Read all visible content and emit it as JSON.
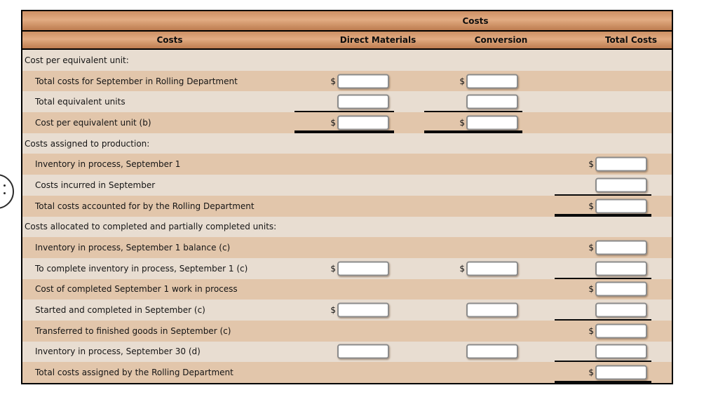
{
  "table": {
    "top_header": "Costs",
    "columns": [
      "Costs",
      "Direct Materials",
      "Conversion",
      "Total Costs"
    ],
    "currency_symbol": "$",
    "colors": {
      "header_gradient_top": "#cd9064",
      "header_gradient_mid": "#e2ac83",
      "header_gradient_bottom": "#bd7c50",
      "row_light": "#e8ddd1",
      "row_dark": "#e2c6ab",
      "border": "#000000"
    },
    "rows": [
      {
        "label": "Cost per equivalent unit:",
        "section": true,
        "cells": {}
      },
      {
        "label": "Total costs for September in Rolling Department",
        "cells": {
          "dm": {
            "dollar": true,
            "input": true,
            "value": ""
          },
          "conv": {
            "dollar": true,
            "input": true,
            "value": ""
          }
        }
      },
      {
        "label": "Total equivalent units",
        "cells": {
          "dm": {
            "input": true,
            "value": "",
            "underline": "thin"
          },
          "conv": {
            "input": true,
            "value": "",
            "underline": "thin"
          }
        }
      },
      {
        "label": "Cost per equivalent unit (b)",
        "cells": {
          "dm": {
            "dollar": true,
            "input": true,
            "value": "",
            "underline": "thick"
          },
          "conv": {
            "dollar": true,
            "input": true,
            "value": "",
            "underline": "thick"
          }
        }
      },
      {
        "label": "Costs assigned to production:",
        "section": true,
        "cells": {}
      },
      {
        "label": "Inventory in process, September 1",
        "cells": {
          "total": {
            "dollar": true,
            "input": true,
            "value": ""
          }
        }
      },
      {
        "label": "Costs incurred in September",
        "cells": {
          "total": {
            "input": true,
            "value": "",
            "underline": "thin"
          }
        }
      },
      {
        "label": "Total costs accounted for by the Rolling Department",
        "cells": {
          "total": {
            "dollar": true,
            "input": true,
            "value": "",
            "underline": "thick"
          }
        }
      },
      {
        "label": "Costs allocated to completed and partially completed units:",
        "section": true,
        "cells": {}
      },
      {
        "label": "Inventory in process, September 1 balance (c)",
        "cells": {
          "total": {
            "dollar": true,
            "input": true,
            "value": ""
          }
        }
      },
      {
        "label": "To complete inventory in process, September 1 (c)",
        "cells": {
          "dm": {
            "dollar": true,
            "input": true,
            "value": ""
          },
          "conv": {
            "dollar": true,
            "input": true,
            "value": ""
          },
          "total": {
            "input": true,
            "value": "",
            "underline": "thin"
          }
        }
      },
      {
        "label": "Cost of completed September 1 work in process",
        "cells": {
          "total": {
            "dollar": true,
            "input": true,
            "value": ""
          }
        }
      },
      {
        "label": "Started and completed in September (c)",
        "cells": {
          "dm": {
            "dollar": true,
            "input": true,
            "value": ""
          },
          "conv": {
            "input": true,
            "value": ""
          },
          "total": {
            "input": true,
            "value": "",
            "underline": "thin"
          }
        }
      },
      {
        "label": "Transferred to finished goods in September (c)",
        "cells": {
          "total": {
            "dollar": true,
            "input": true,
            "value": ""
          }
        }
      },
      {
        "label": "Inventory in process, September 30 (d)",
        "cells": {
          "dm": {
            "input": true,
            "value": ""
          },
          "conv": {
            "input": true,
            "value": ""
          },
          "total": {
            "input": true,
            "value": "",
            "underline": "thin"
          }
        }
      },
      {
        "label": "Total costs assigned by the Rolling Department",
        "cells": {
          "total": {
            "dollar": true,
            "input": true,
            "value": "",
            "underline": "thick"
          }
        }
      }
    ]
  }
}
